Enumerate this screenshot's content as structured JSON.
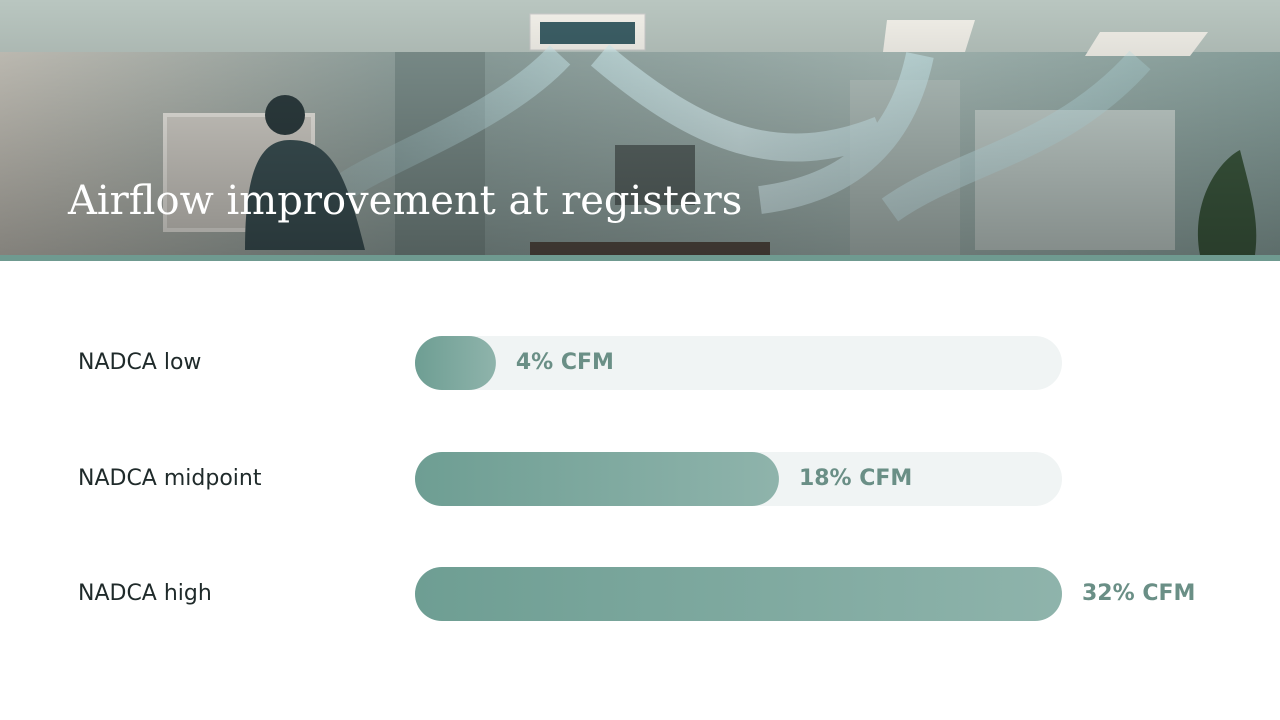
{
  "chart_data": {
    "type": "bar",
    "title": "Airflow improvement at registers",
    "categories": [
      "NADCA low",
      "NADCA midpoint",
      "NADCA high"
    ],
    "values": [
      4,
      18,
      32
    ],
    "value_labels": [
      "4% CFM",
      "18% CFM",
      "32% CFM"
    ],
    "color": "#6e9e93",
    "xlim": [
      0,
      32
    ]
  }
}
